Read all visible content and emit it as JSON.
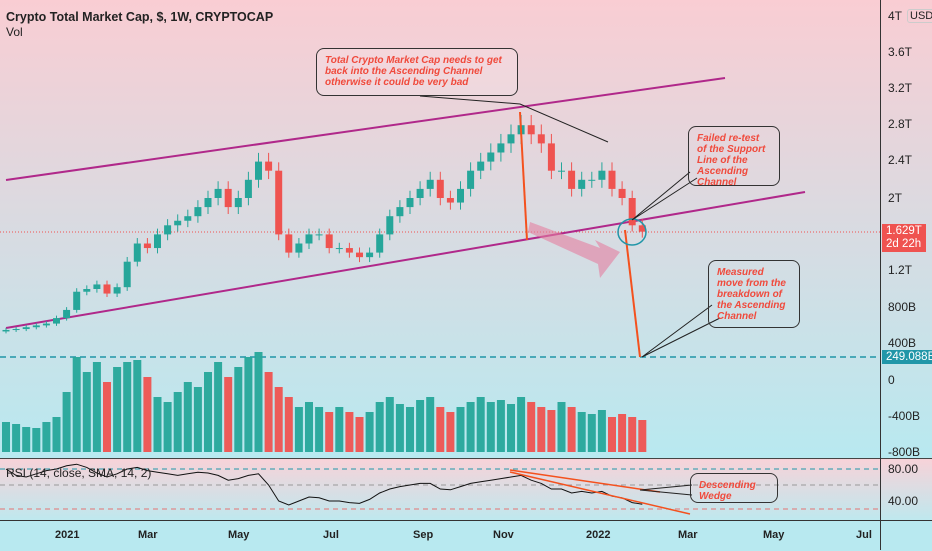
{
  "header": {
    "title": "Crypto Total Market Cap, $, 1W, CRYPTOCAP",
    "volume_label": "Vol"
  },
  "price_axis": {
    "currency": "USD",
    "ticks": [
      "4T",
      "3.6T",
      "3.2T",
      "2.8T",
      "2.4T",
      "2T",
      "1.2T",
      "800B",
      "400B",
      "0",
      "-400B",
      "-800B"
    ],
    "last_price": "1.629T",
    "countdown": "2d 22h",
    "target": "249.088B"
  },
  "rsi": {
    "label": "RSI (14, close, SMA, 14, 2)",
    "ticks": [
      "80.00",
      "40.00"
    ]
  },
  "time_axis": {
    "ticks": [
      "2021",
      "Mar",
      "May",
      "Jul",
      "Sep",
      "Nov",
      "2022",
      "Mar",
      "May",
      "Jul"
    ]
  },
  "annotations": {
    "top": "Total Crypto Market Cap needs to get back into the Ascending Channel otherwise it could be very bad",
    "retest": "Failed re-test of the Support Line of the Ascending Channel",
    "measured": "Measured move from the breakdown of the Ascending Channel",
    "wedge": "Descending Wedge"
  },
  "colors": {
    "up": "#26a69a",
    "down": "#ef5350",
    "channel": "#b0288a",
    "target": "#2196a8"
  },
  "chart_data": {
    "type": "candlestick",
    "unit": "T USD",
    "closes": [
      0.55,
      0.56,
      0.58,
      0.6,
      0.62,
      0.68,
      0.77,
      0.97,
      1.0,
      1.05,
      0.95,
      1.02,
      1.3,
      1.5,
      1.45,
      1.6,
      1.7,
      1.75,
      1.8,
      1.9,
      2.0,
      2.1,
      1.9,
      2.0,
      2.2,
      2.4,
      2.3,
      1.6,
      1.4,
      1.5,
      1.6,
      1.6,
      1.45,
      1.45,
      1.4,
      1.35,
      1.4,
      1.6,
      1.8,
      1.9,
      2.0,
      2.1,
      2.2,
      2.0,
      1.95,
      2.1,
      2.3,
      2.4,
      2.5,
      2.6,
      2.7,
      2.8,
      2.7,
      2.6,
      2.3,
      2.3,
      2.1,
      2.2,
      2.2,
      2.3,
      2.1,
      2.0,
      1.7,
      1.63
    ],
    "volume_relative": [
      30,
      28,
      25,
      24,
      30,
      35,
      60,
      95,
      80,
      90,
      70,
      85,
      90,
      92,
      75,
      55,
      50,
      60,
      70,
      65,
      80,
      90,
      75,
      85,
      95,
      100,
      80,
      65,
      55,
      45,
      50,
      45,
      40,
      45,
      40,
      35,
      40,
      50,
      55,
      48,
      45,
      52,
      55,
      45,
      40,
      45,
      50,
      55,
      50,
      52,
      48,
      55,
      50,
      45,
      42,
      50,
      45,
      40,
      38,
      42,
      35,
      38,
      35,
      32
    ],
    "rsi": [
      80,
      72,
      70,
      74,
      78,
      80,
      84,
      86,
      82,
      75,
      70,
      74,
      80,
      82,
      78,
      76,
      74,
      72,
      74,
      76,
      75,
      72,
      66,
      68,
      72,
      74,
      60,
      40,
      35,
      40,
      45,
      44,
      40,
      40,
      38,
      37,
      42,
      50,
      55,
      58,
      60,
      62,
      62,
      55,
      54,
      58,
      62,
      64,
      66,
      68,
      70,
      72,
      66,
      62,
      55,
      55,
      50,
      52,
      50,
      52,
      46,
      44,
      38,
      36
    ],
    "ylim": [
      -0.8,
      4
    ]
  }
}
